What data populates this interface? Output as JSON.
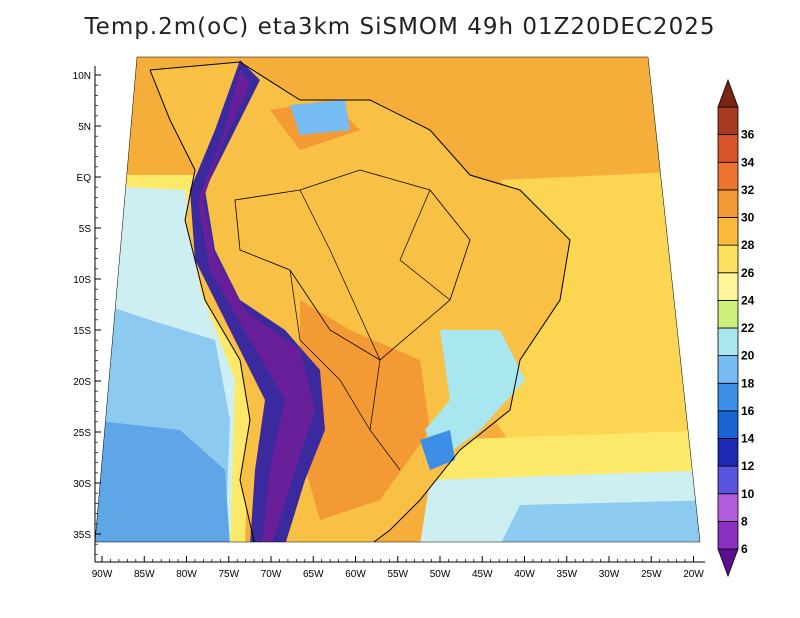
{
  "title": "Temp.2m(oC) eta3km SiSMOM 49h 01Z20DEC2025",
  "axes": {
    "lat_labels": [
      "10N",
      "5N",
      "EQ",
      "5S",
      "10S",
      "15S",
      "20S",
      "25S",
      "30S",
      "35S"
    ],
    "lat_values": [
      10,
      5,
      0,
      -5,
      -10,
      -15,
      -20,
      -25,
      -30,
      -35
    ],
    "lon_labels": [
      "90W",
      "85W",
      "80W",
      "75W",
      "70W",
      "65W",
      "60W",
      "55W",
      "50W",
      "45W",
      "40W",
      "35W",
      "30W",
      "25W",
      "20W"
    ],
    "lon_values": [
      -90,
      -85,
      -80,
      -75,
      -70,
      -65,
      -60,
      -55,
      -50,
      -45,
      -40,
      -35,
      -30,
      -25,
      -20
    ]
  },
  "colorbar": {
    "labels": [
      "6",
      "8",
      "10",
      "12",
      "14",
      "16",
      "18",
      "20",
      "22",
      "24",
      "26",
      "28",
      "30",
      "32",
      "34",
      "36"
    ],
    "colors": [
      "#5a0f8c",
      "#8b2fc2",
      "#b45ce0",
      "#5a55e0",
      "#1f28b4",
      "#1a64d0",
      "#3c8ee6",
      "#78bcf5",
      "#a8e6f0",
      "#ccf07a",
      "#fcf59a",
      "#fce060",
      "#f8b93c",
      "#f49a34",
      "#ec7430",
      "#d8532a",
      "#a83a22",
      "#7a2614"
    ]
  },
  "map_regions": {
    "ocean_north": "#f6ae3a",
    "land_interior": "#f8c045",
    "land_warm": "#f49a34",
    "ocean_equatorial": "#fcd652",
    "ocean_mid": "#fce96a",
    "ocean_cool": "#cdeff2",
    "ocean_cold": "#8ccaf0",
    "ocean_pacific": "#5ea6e6",
    "andes_cold": "#3b2a9e",
    "andes_core": "#6a1f9a"
  }
}
